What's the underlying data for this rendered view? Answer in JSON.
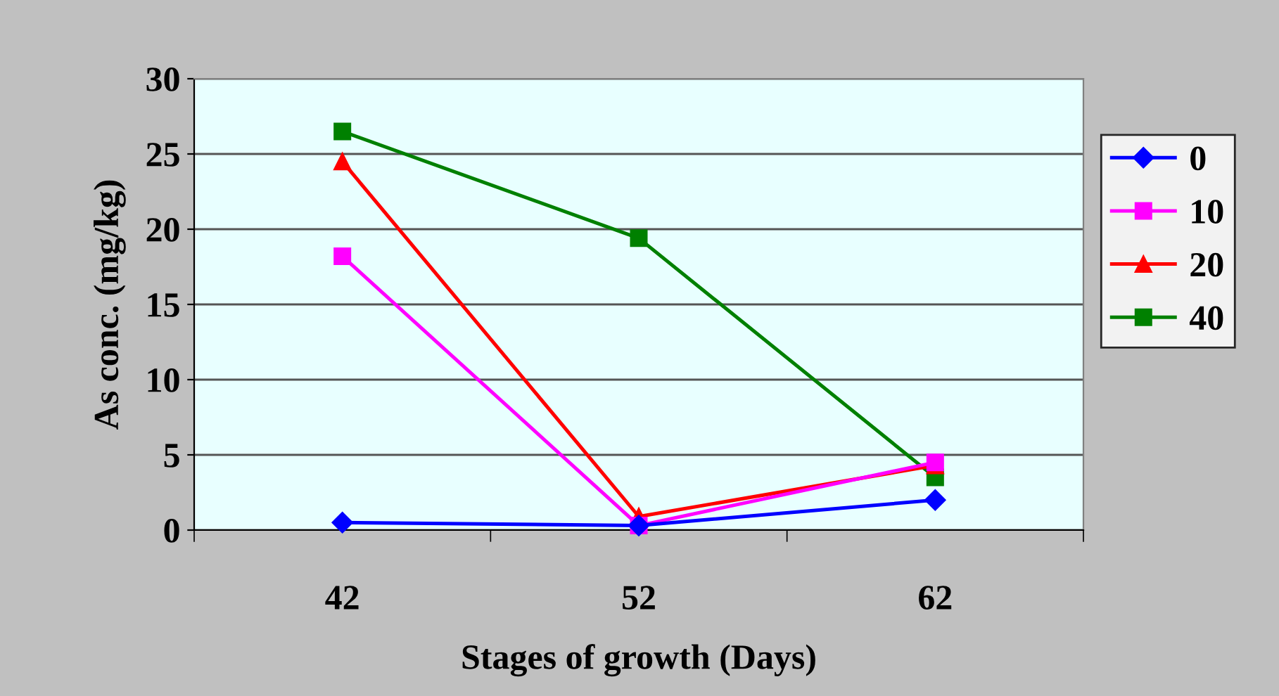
{
  "chart_data": {
    "type": "line",
    "xlabel": "Stages of growth (Days)",
    "ylabel": "As conc. (mg/kg)",
    "categories": [
      "42",
      "52",
      "62"
    ],
    "series": [
      {
        "name": "0",
        "color": "#0000ff",
        "marker": "diamond",
        "values": [
          0.5,
          0.3,
          2.0
        ]
      },
      {
        "name": "10",
        "color": "#ff00ff",
        "marker": "square",
        "values": [
          18.2,
          0.3,
          4.5
        ]
      },
      {
        "name": "20",
        "color": "#ff0000",
        "marker": "triangle",
        "values": [
          24.5,
          0.9,
          4.3
        ]
      },
      {
        "name": "40",
        "color": "#008000",
        "marker": "square",
        "values": [
          26.5,
          19.4,
          3.5
        ]
      }
    ],
    "ylim": [
      0,
      30
    ],
    "yticks": [
      0,
      5,
      10,
      15,
      20,
      25,
      30
    ],
    "grid": "y",
    "legend": "right",
    "line_style": "solid"
  }
}
